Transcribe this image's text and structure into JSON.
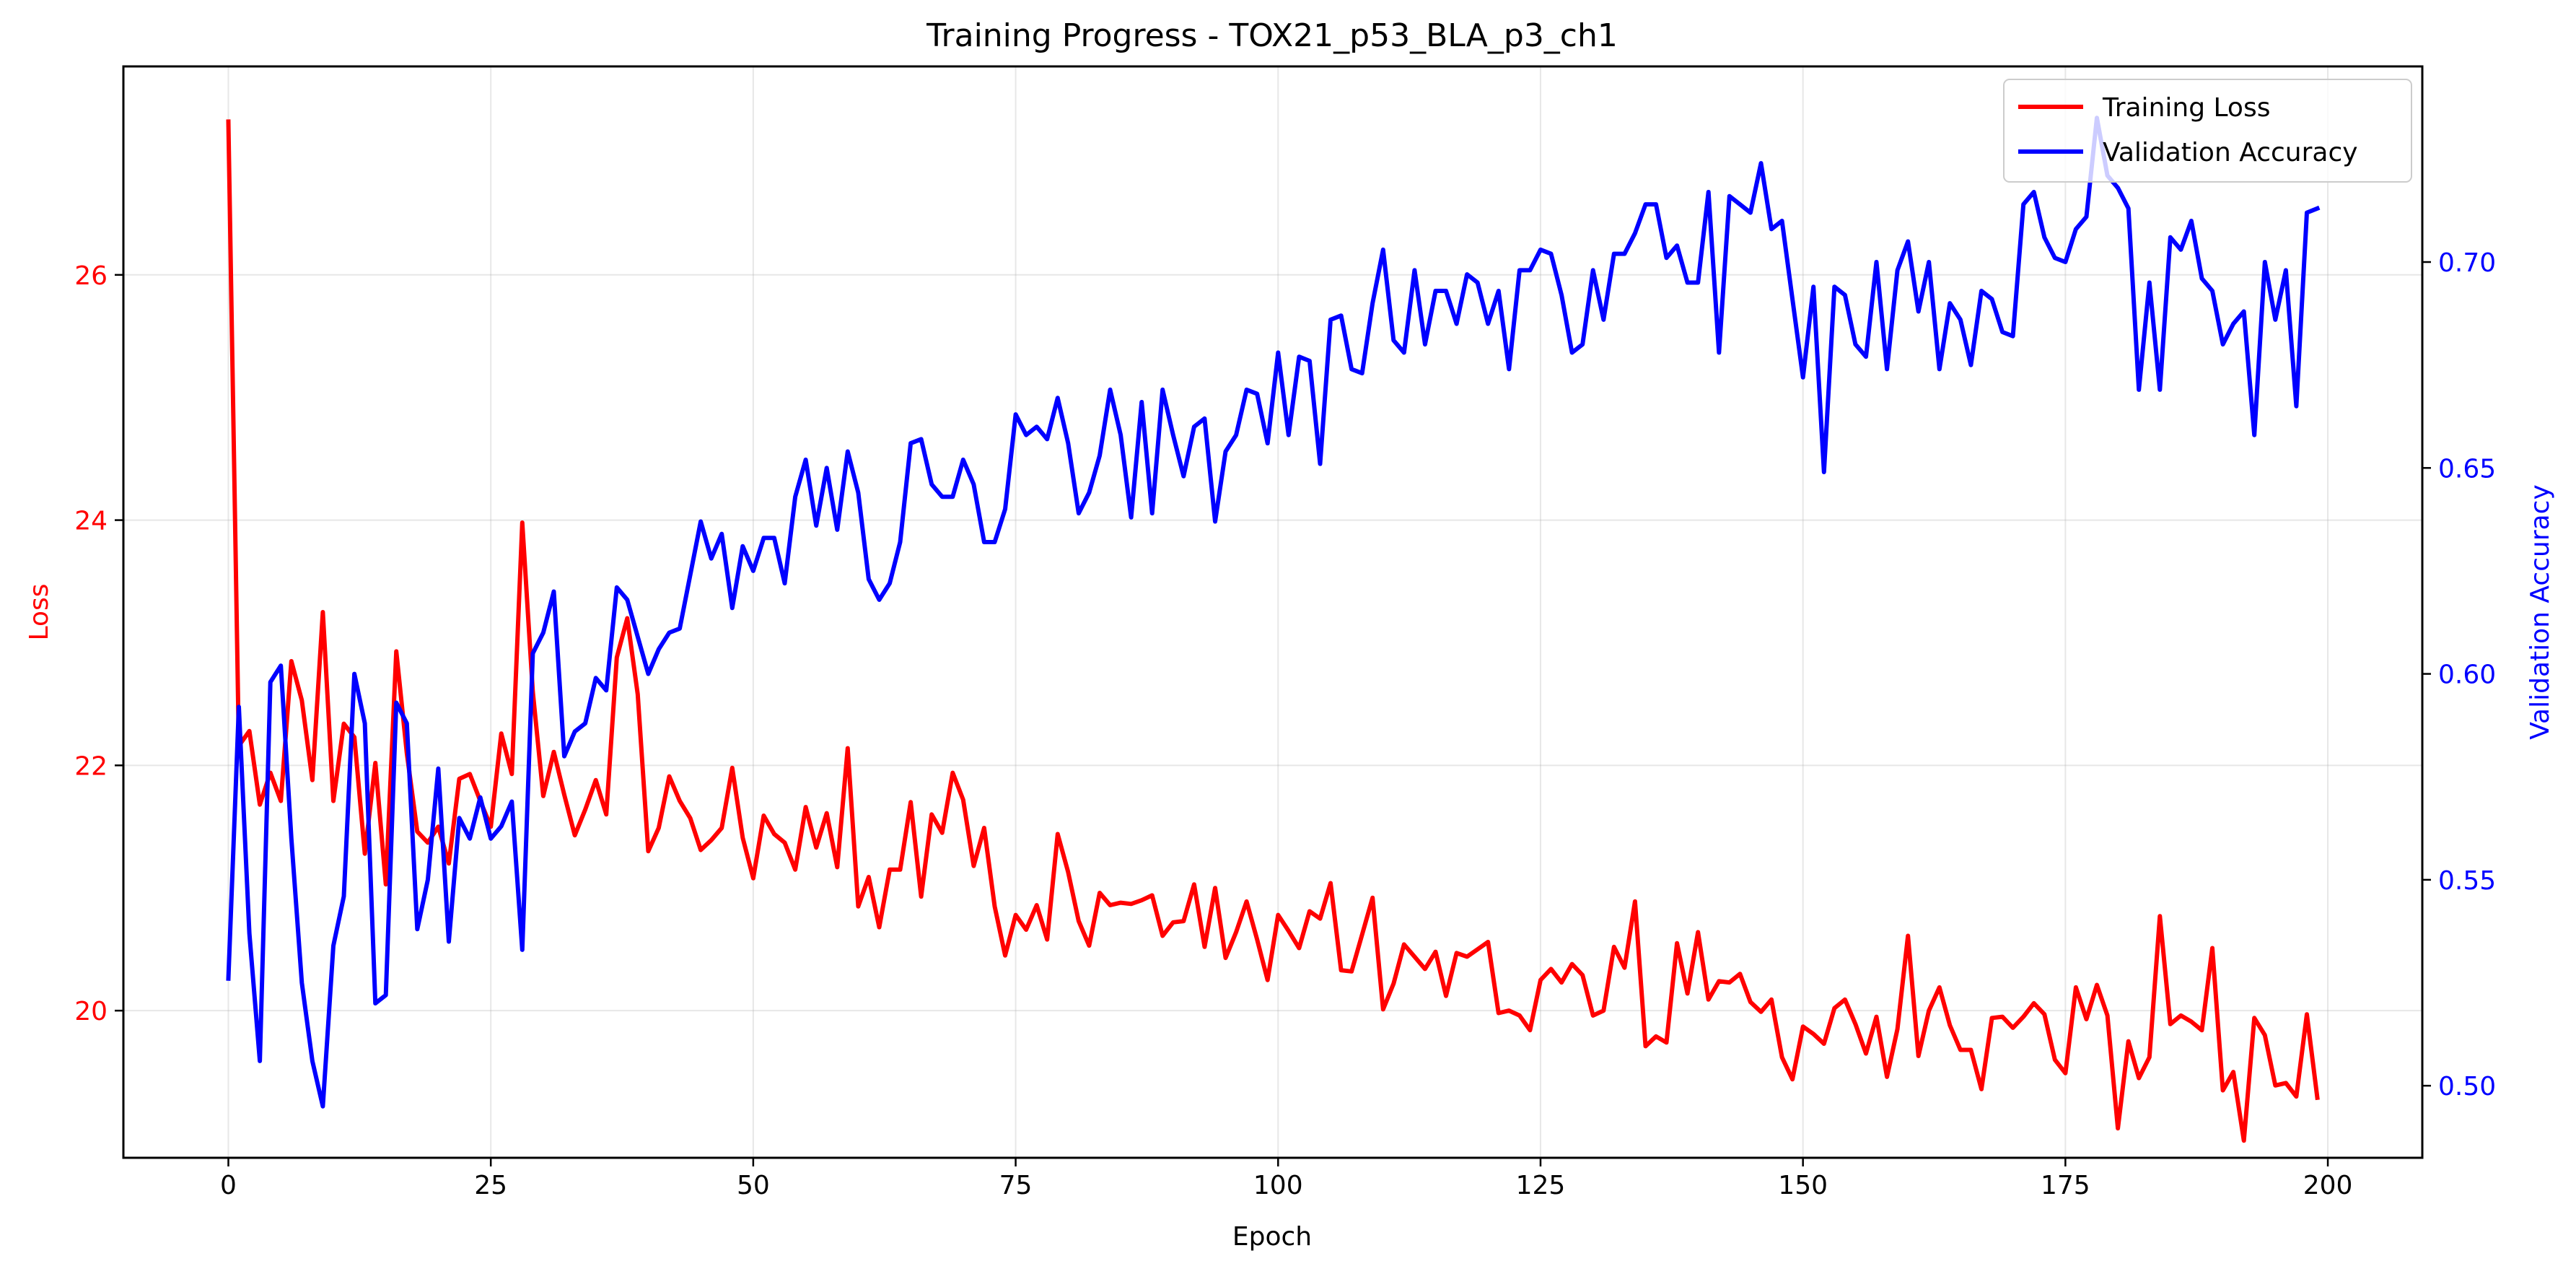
{
  "chart_data": {
    "type": "line",
    "title": "Training Progress - TOX21_p53_BLA_p3_ch1",
    "xlabel": "Epoch",
    "ylabel_left": "Loss",
    "ylabel_right": "Validation Accuracy",
    "xlim": [
      -10,
      209
    ],
    "ylim_left": [
      18.8,
      27.7
    ],
    "ylim_right": [
      0.4825,
      0.7475
    ],
    "xticks": [
      0,
      25,
      50,
      75,
      100,
      125,
      150,
      175,
      200
    ],
    "yticks_left": [
      20,
      22,
      24,
      26
    ],
    "yticks_right": [
      0.5,
      0.55,
      0.6,
      0.65,
      0.7
    ],
    "xtick_labels": [
      "0",
      "25",
      "50",
      "75",
      "100",
      "125",
      "150",
      "175",
      "200"
    ],
    "ytick_labels_left": [
      "20",
      "22",
      "24",
      "26"
    ],
    "ytick_labels_right": [
      "0.50",
      "0.55",
      "0.60",
      "0.65",
      "0.70"
    ],
    "grid": true,
    "legend_position": "top-right",
    "series": [
      {
        "name": "Training Loss",
        "axis": "left",
        "color": "#ff0000",
        "values": [
          27.25,
          22.16,
          22.28,
          21.68,
          21.94,
          21.71,
          22.85,
          22.53,
          21.88,
          23.25,
          21.71,
          22.34,
          22.23,
          21.28,
          22.02,
          21.03,
          22.93,
          22.1,
          21.46,
          21.37,
          21.5,
          21.2,
          21.89,
          21.93,
          21.71,
          21.5,
          22.26,
          21.93,
          23.98,
          22.6,
          21.75,
          22.11,
          21.76,
          21.43,
          21.64,
          21.88,
          21.6,
          22.88,
          23.2,
          22.58,
          21.3,
          21.49,
          21.91,
          21.71,
          21.57,
          21.31,
          21.39,
          21.49,
          21.98,
          21.41,
          21.08,
          21.59,
          21.44,
          21.37,
          21.15,
          21.66,
          21.33,
          21.61,
          21.17,
          22.14,
          20.85,
          21.09,
          20.68,
          21.15,
          21.15,
          21.7,
          20.93,
          21.6,
          21.45,
          21.94,
          21.72,
          21.18,
          21.49,
          20.85,
          20.45,
          20.78,
          20.66,
          20.86,
          20.58,
          21.44,
          21.13,
          20.73,
          20.53,
          20.96,
          20.86,
          20.88,
          20.87,
          20.9,
          20.94,
          20.61,
          20.72,
          20.73,
          21.03,
          20.52,
          21.0,
          20.43,
          20.64,
          20.89,
          20.58,
          20.25,
          20.78,
          20.65,
          20.51,
          20.81,
          20.75,
          21.04,
          20.33,
          20.32,
          20.62,
          20.92,
          20.01,
          20.22,
          20.54,
          20.44,
          20.34,
          20.48,
          20.12,
          20.47,
          20.44,
          20.5,
          20.56,
          19.98,
          20.0,
          19.96,
          19.84,
          20.25,
          20.34,
          20.23,
          20.38,
          20.29,
          19.96,
          20.0,
          20.52,
          20.35,
          20.89,
          19.71,
          19.79,
          19.74,
          20.55,
          20.14,
          20.64,
          20.09,
          20.24,
          20.23,
          20.3,
          20.07,
          19.99,
          20.09,
          19.62,
          19.44,
          19.87,
          19.81,
          19.73,
          20.02,
          20.09,
          19.89,
          19.65,
          19.95,
          19.46,
          19.85,
          20.61,
          19.63,
          20.0,
          20.19,
          19.88,
          19.68,
          19.68,
          19.36,
          19.94,
          19.95,
          19.86,
          19.95,
          20.06,
          19.97,
          19.6,
          19.49,
          20.19,
          19.93,
          20.21,
          19.96,
          19.04,
          19.75,
          19.45,
          19.62,
          20.77,
          19.89,
          19.96,
          19.91,
          19.84,
          20.51,
          19.35,
          19.5,
          18.94,
          19.94,
          19.8,
          19.39,
          19.41,
          19.3,
          19.97,
          19.29
        ]
      },
      {
        "name": "Validation Accuracy",
        "axis": "right",
        "color": "#0000ff",
        "values": [
          0.526,
          0.592,
          0.537,
          0.506,
          0.598,
          0.602,
          0.56,
          0.525,
          0.506,
          0.495,
          0.534,
          0.546,
          0.6,
          0.588,
          0.52,
          0.522,
          0.593,
          0.588,
          0.538,
          0.55,
          0.577,
          0.535,
          0.565,
          0.56,
          0.57,
          0.56,
          0.563,
          0.569,
          0.533,
          0.605,
          0.61,
          0.62,
          0.58,
          0.586,
          0.588,
          0.599,
          0.596,
          0.621,
          0.618,
          0.609,
          0.6,
          0.606,
          0.61,
          0.611,
          0.624,
          0.637,
          0.628,
          0.634,
          0.616,
          0.631,
          0.625,
          0.633,
          0.633,
          0.622,
          0.643,
          0.652,
          0.636,
          0.65,
          0.635,
          0.654,
          0.644,
          0.623,
          0.618,
          0.622,
          0.632,
          0.656,
          0.657,
          0.646,
          0.643,
          0.643,
          0.652,
          0.646,
          0.632,
          0.632,
          0.64,
          0.663,
          0.658,
          0.66,
          0.657,
          0.667,
          0.656,
          0.639,
          0.644,
          0.653,
          0.669,
          0.658,
          0.638,
          0.666,
          0.639,
          0.669,
          0.658,
          0.648,
          0.66,
          0.662,
          0.637,
          0.654,
          0.658,
          0.669,
          0.668,
          0.656,
          0.678,
          0.658,
          0.677,
          0.676,
          0.651,
          0.686,
          0.687,
          0.674,
          0.673,
          0.69,
          0.703,
          0.681,
          0.678,
          0.698,
          0.68,
          0.693,
          0.693,
          0.685,
          0.697,
          0.695,
          0.685,
          0.693,
          0.674,
          0.698,
          0.698,
          0.703,
          0.702,
          0.692,
          0.678,
          0.68,
          0.698,
          0.686,
          0.702,
          0.702,
          0.707,
          0.714,
          0.714,
          0.701,
          0.704,
          0.695,
          0.695,
          0.717,
          0.678,
          0.716,
          0.714,
          0.712,
          0.724,
          0.708,
          0.71,
          0.691,
          0.672,
          0.694,
          0.649,
          0.694,
          0.692,
          0.68,
          0.677,
          0.7,
          0.674,
          0.698,
          0.705,
          0.688,
          0.7,
          0.674,
          0.69,
          0.686,
          0.675,
          0.693,
          0.691,
          0.683,
          0.682,
          0.714,
          0.717,
          0.706,
          0.701,
          0.7,
          0.708,
          0.711,
          0.735,
          0.721,
          0.718,
          0.713,
          0.669,
          0.695,
          0.669,
          0.706,
          0.703,
          0.71,
          0.696,
          0.693,
          0.68,
          0.685,
          0.688,
          0.658,
          0.7,
          0.686,
          0.698,
          0.665,
          0.712,
          0.713
        ]
      }
    ]
  }
}
